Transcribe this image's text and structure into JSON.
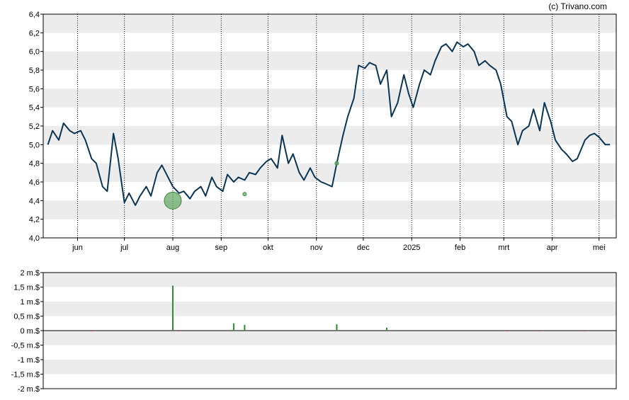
{
  "credit": "(c) Trivano.com",
  "colors": {
    "line": "#0b3555",
    "band": "#ececec",
    "grid_v": "#000000",
    "bubble": "#6aaa6a",
    "volume_pos": "#2e8b2e",
    "volume_neg": "#cc3333"
  },
  "chart_data": [
    {
      "type": "line",
      "title": "",
      "xlabel": "",
      "ylabel": "",
      "ylim": [
        4.0,
        6.4
      ],
      "yticks": [
        "6,4",
        "6,2",
        "6,0",
        "5,8",
        "5,6",
        "5,4",
        "5,2",
        "5,0",
        "4,8",
        "4,6",
        "4,4",
        "4,2",
        "4,0"
      ],
      "xticks": [
        "jun",
        "jul",
        "aug",
        "sep",
        "okt",
        "nov",
        "dec",
        "2025",
        "feb",
        "mrt",
        "apr",
        "mei"
      ],
      "grid": "horizontal bands + dotted vertical month lines",
      "x": [
        "2024-05-13",
        "2024-05-16",
        "2024-05-20",
        "2024-05-23",
        "2024-05-27",
        "2024-05-30",
        "2024-06-03",
        "2024-06-06",
        "2024-06-10",
        "2024-06-13",
        "2024-06-17",
        "2024-06-20",
        "2024-06-24",
        "2024-06-27",
        "2024-07-01",
        "2024-07-04",
        "2024-07-08",
        "2024-07-11",
        "2024-07-15",
        "2024-07-18",
        "2024-07-22",
        "2024-07-25",
        "2024-07-29",
        "2024-08-01",
        "2024-08-05",
        "2024-08-08",
        "2024-08-12",
        "2024-08-15",
        "2024-08-19",
        "2024-08-22",
        "2024-08-26",
        "2024-08-29",
        "2024-09-02",
        "2024-09-05",
        "2024-09-09",
        "2024-09-12",
        "2024-09-16",
        "2024-09-19",
        "2024-09-23",
        "2024-09-26",
        "2024-09-30",
        "2024-10-03",
        "2024-10-07",
        "2024-10-10",
        "2024-10-14",
        "2024-10-17",
        "2024-10-21",
        "2024-10-24",
        "2024-10-28",
        "2024-10-31",
        "2024-11-04",
        "2024-11-07",
        "2024-11-11",
        "2024-11-14",
        "2024-11-18",
        "2024-11-21",
        "2024-11-25",
        "2024-11-28",
        "2024-12-02",
        "2024-12-05",
        "2024-12-09",
        "2024-12-12",
        "2024-12-16",
        "2024-12-19",
        "2024-12-23",
        "2024-12-27",
        "2024-12-30",
        "2025-01-02",
        "2025-01-06",
        "2025-01-09",
        "2025-01-13",
        "2025-01-16",
        "2025-01-20",
        "2025-01-23",
        "2025-01-27",
        "2025-01-30",
        "2025-02-03",
        "2025-02-06",
        "2025-02-10",
        "2025-02-13",
        "2025-02-17",
        "2025-02-20",
        "2025-02-24",
        "2025-02-27",
        "2025-03-03",
        "2025-03-06",
        "2025-03-10",
        "2025-03-13",
        "2025-03-17",
        "2025-03-20",
        "2025-03-24",
        "2025-03-27",
        "2025-03-31",
        "2025-04-03",
        "2025-04-07",
        "2025-04-10",
        "2025-04-14",
        "2025-04-17",
        "2025-04-22",
        "2025-04-25",
        "2025-04-28",
        "2025-05-01",
        "2025-05-05",
        "2025-05-08"
      ],
      "series": [
        {
          "values": [
            5.0,
            5.15,
            5.05,
            5.23,
            5.15,
            5.12,
            5.15,
            5.05,
            4.85,
            4.8,
            4.55,
            4.5,
            5.12,
            4.85,
            4.38,
            4.48,
            4.35,
            4.45,
            4.55,
            4.45,
            4.7,
            4.78,
            4.65,
            4.55,
            4.48,
            4.5,
            4.42,
            4.5,
            4.55,
            4.45,
            4.65,
            4.55,
            4.5,
            4.68,
            4.6,
            4.65,
            4.62,
            4.7,
            4.68,
            4.75,
            4.82,
            4.85,
            4.75,
            5.1,
            4.8,
            4.9,
            4.7,
            4.62,
            4.75,
            4.65,
            4.6,
            4.58,
            4.55,
            4.8,
            5.1,
            5.3,
            5.5,
            5.85,
            5.82,
            5.88,
            5.85,
            5.65,
            5.8,
            5.3,
            5.45,
            5.75,
            5.55,
            5.4,
            5.65,
            5.8,
            5.75,
            5.9,
            6.05,
            6.08,
            6.0,
            6.1,
            6.05,
            6.08,
            6.0,
            5.85,
            5.9,
            5.85,
            5.8,
            5.65,
            5.3,
            5.25,
            5.0,
            5.15,
            5.2,
            5.38,
            5.15,
            5.45,
            5.25,
            5.05,
            4.95,
            4.9,
            4.82,
            4.85,
            5.05,
            5.1,
            5.12,
            5.08,
            5.0,
            5.0
          ]
        }
      ],
      "markers": [
        {
          "x": "2024-08-01",
          "y": 4.4,
          "size": "large"
        },
        {
          "x": "2024-09-16",
          "y": 4.47,
          "size": "small"
        },
        {
          "x": "2024-11-14",
          "y": 4.8,
          "size": "small"
        }
      ]
    },
    {
      "type": "bar",
      "title": "",
      "xlabel": "",
      "ylabel": "",
      "ylim": [
        -2.0,
        2.0
      ],
      "yticks": [
        "2 m.$",
        "1,5 m.$",
        "1 m.$",
        "0,5 m.$",
        "0 m.$",
        "-0,5 m.$",
        "-1 m.$",
        "-1,5 m.$",
        "-2 m.$"
      ],
      "x": [
        "2024-06-10",
        "2024-08-01",
        "2024-08-05",
        "2024-09-09",
        "2024-09-16",
        "2024-11-14",
        "2024-12-16",
        "2025-03-03",
        "2025-03-24",
        "2025-04-22"
      ],
      "values": [
        -0.01,
        1.55,
        -0.02,
        0.25,
        0.2,
        0.22,
        0.1,
        -0.01,
        -0.01,
        -0.01
      ]
    }
  ]
}
